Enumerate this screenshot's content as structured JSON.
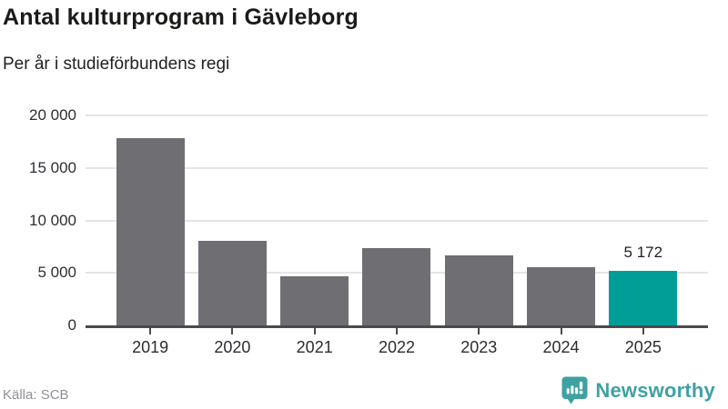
{
  "header": {
    "title": "Antal kulturprogram i Gävleborg",
    "subtitle": "Per år i studieförbundens regi"
  },
  "chart_data": {
    "type": "bar",
    "title": "Antal kulturprogram i Gävleborg",
    "subtitle": "Per år i studieförbundens regi",
    "categories": [
      "2019",
      "2020",
      "2021",
      "2022",
      "2023",
      "2024",
      "2025"
    ],
    "values": [
      17800,
      8050,
      4650,
      7400,
      6650,
      5570,
      5172
    ],
    "xlabel": "",
    "ylabel": "",
    "ylim": [
      0,
      20000
    ],
    "yticks": [
      0,
      5000,
      10000,
      15000,
      20000
    ],
    "ytick_labels": [
      "0",
      "5 000",
      "10 000",
      "15 000",
      "20 000"
    ],
    "grid": true,
    "legend": "none",
    "bar_color": "#6e6e73",
    "highlight_index": 6,
    "highlight_color": "#009e96",
    "data_labels": {
      "6": "5 172"
    }
  },
  "footer": {
    "source": "Källa: SCB",
    "brand": "Newsworthy",
    "brand_color": "#3fa1a2",
    "logo_icon": "newsworthy-chart-bubble-icon"
  }
}
